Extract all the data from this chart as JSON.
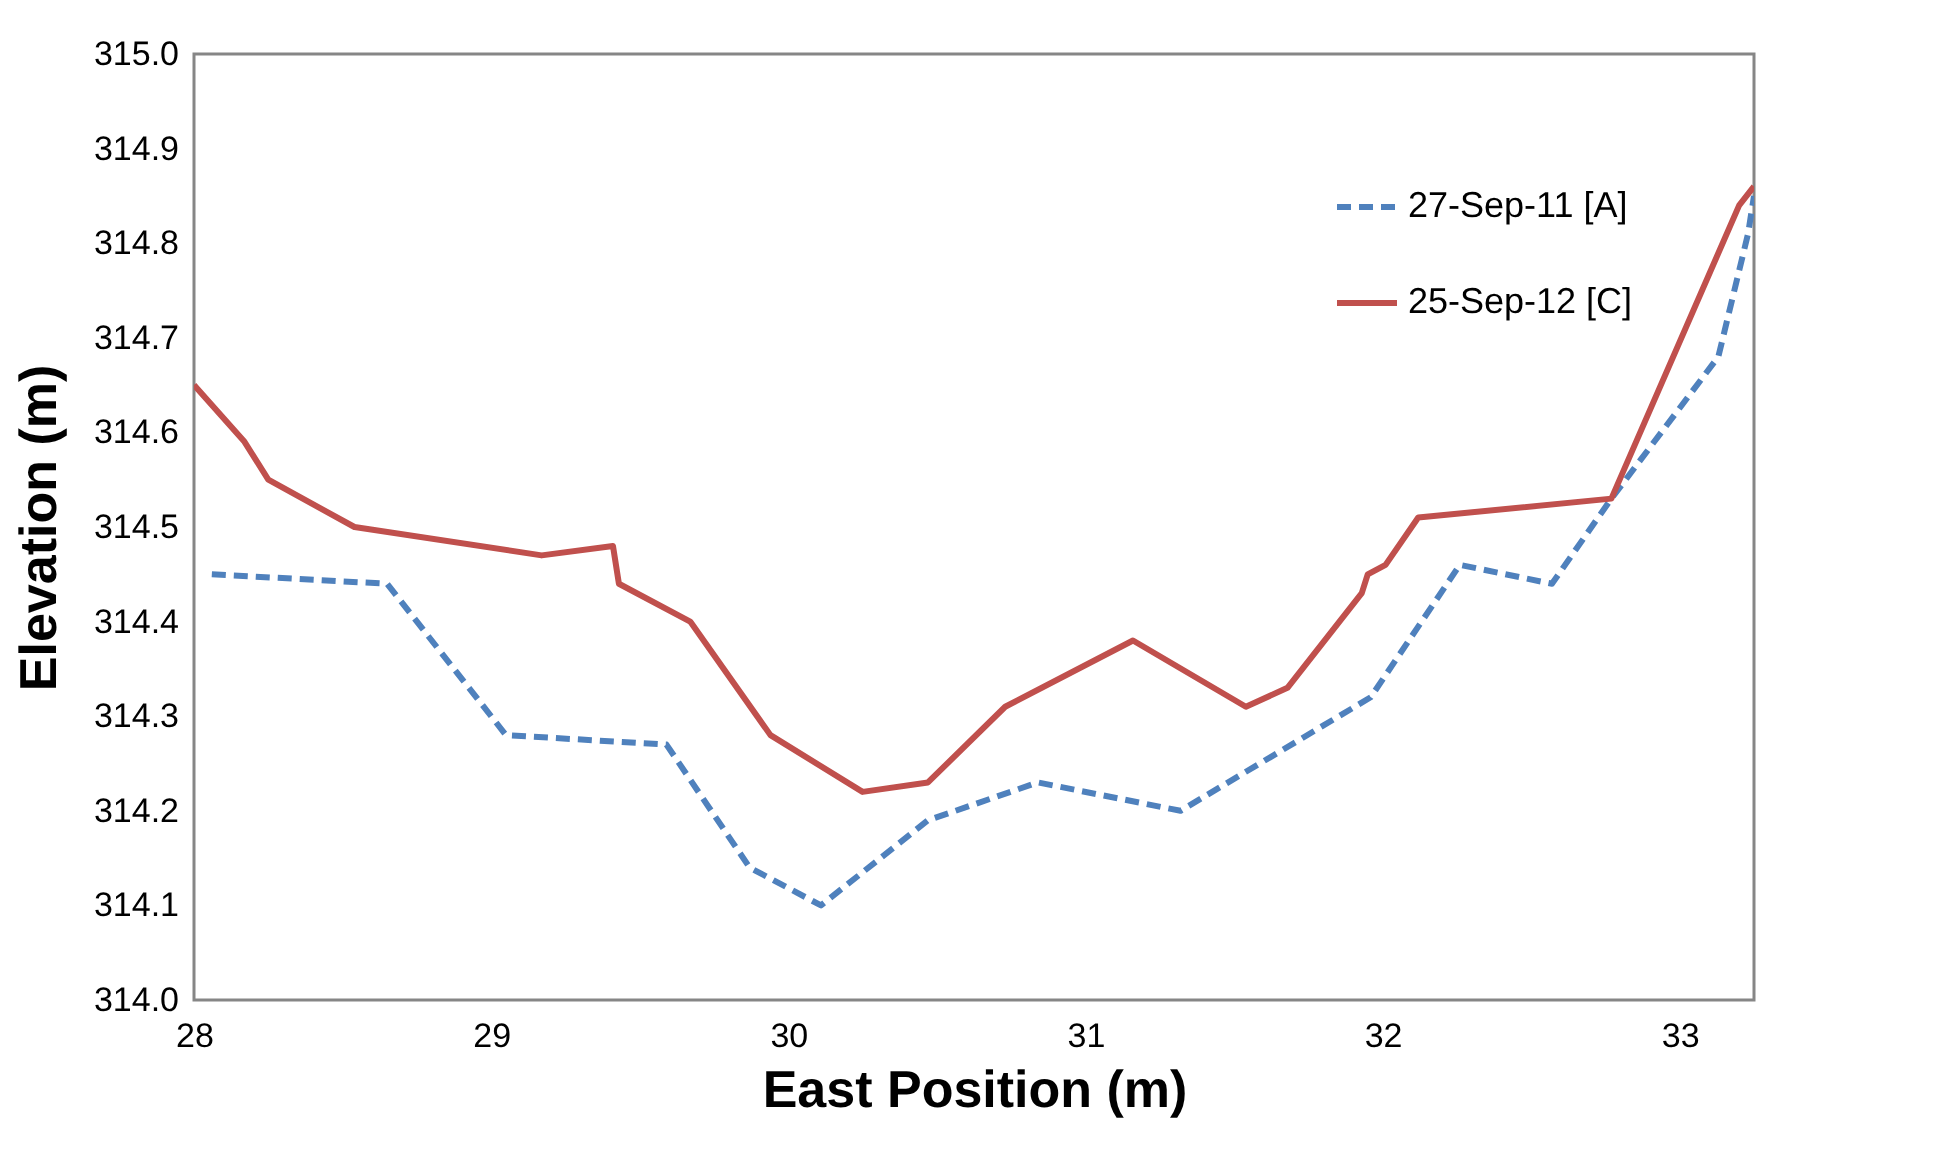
{
  "chart_data": {
    "type": "line",
    "xlabel": "East Position (m)",
    "ylabel": "Elevation (m)",
    "xlim": [
      28,
      33.25
    ],
    "xticks": [
      28,
      29,
      30,
      31,
      32,
      33
    ],
    "ylim": [
      314,
      315
    ],
    "yticks": [
      {
        "value": 314,
        "label": "314.0"
      },
      314.1,
      314.2,
      314.3,
      314.4,
      314.5,
      314.6,
      314.7,
      314.8,
      314.9,
      {
        "value": 315,
        "label": "315.0"
      }
    ],
    "grid": false,
    "legend": "top right",
    "marker": "none",
    "series": [
      {
        "name": "27-Sep-11 [A]",
        "color": "#4f81bd",
        "line_style": "dashed",
        "x": [
          28.06,
          28.65,
          29.05,
          29.59,
          29.87,
          30.11,
          30.47,
          30.84,
          31.32,
          31.96,
          32.26,
          32.57,
          32.77,
          33.13,
          33.23,
          33.25
        ],
        "values": [
          314.45,
          314.44,
          314.28,
          314.27,
          314.14,
          314.1,
          314.19,
          314.23,
          314.2,
          314.32,
          314.46,
          314.44,
          314.53,
          314.68,
          314.81,
          314.85
        ]
      },
      {
        "name": "25-Sep-12 [C]",
        "color": "#c0504d",
        "line_style": "solid",
        "x": [
          28,
          28.17,
          28.25,
          28.54,
          29.17,
          29.41,
          29.43,
          29.67,
          29.94,
          30.25,
          30.47,
          30.73,
          31.16,
          31.54,
          31.68,
          31.93,
          31.95,
          32.01,
          32.12,
          32.77,
          33.2,
          33.25
        ],
        "values": [
          314.65,
          314.59,
          314.55,
          314.5,
          314.47,
          314.48,
          314.44,
          314.4,
          314.28,
          314.22,
          314.23,
          314.31,
          314.38,
          314.31,
          314.33,
          314.43,
          314.45,
          314.46,
          314.51,
          314.53,
          314.84,
          314.86
        ]
      }
    ]
  }
}
